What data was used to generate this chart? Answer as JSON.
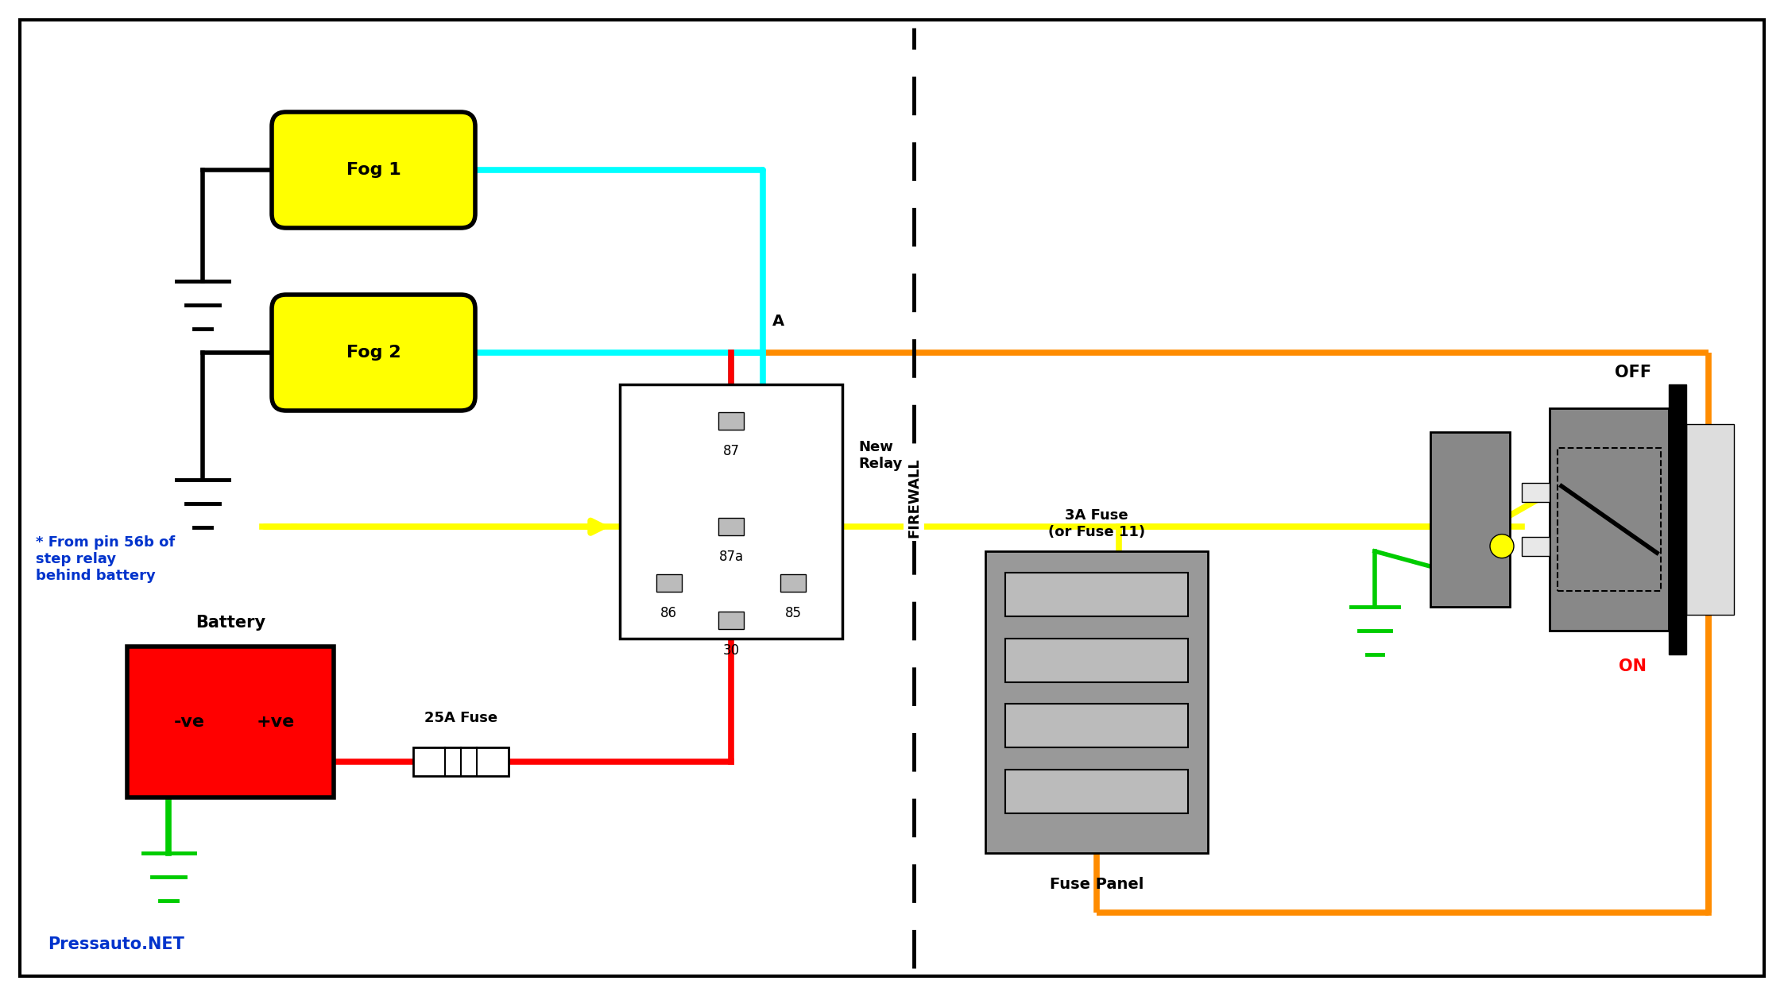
{
  "bg_color": "#ffffff",
  "fog1_label": "Fog 1",
  "fog2_label": "Fog 2",
  "battery_label": "Battery",
  "battery_neg": "-ve",
  "battery_pos": "+ve",
  "fuse25_label": "25A Fuse",
  "fuse3_label": "3A Fuse\n(or Fuse 11)",
  "fuse_panel_label": "Fuse Panel",
  "relay_label": "New\nRelay",
  "firewall_label": "FIREWALL",
  "point_a_label": "A",
  "off_label": "OFF",
  "on_label": "ON",
  "from_pin_label": "* From pin 56b of\nstep relay\nbehind battery",
  "pressauto_label": "Pressauto.NET",
  "colors": {
    "black": "#000000",
    "cyan": "#00FFFF",
    "orange": "#FF8C00",
    "yellow": "#FFFF00",
    "red": "#FF0000",
    "green": "#00CC00",
    "blue": "#0033CC",
    "gray": "#999999",
    "mid_gray": "#888888",
    "light_gray": "#BBBBBB",
    "fog_fill": "#FFFF00",
    "battery_fill": "#FF0000",
    "white": "#FFFFFF",
    "relay_fill": "#FFFFFF"
  }
}
